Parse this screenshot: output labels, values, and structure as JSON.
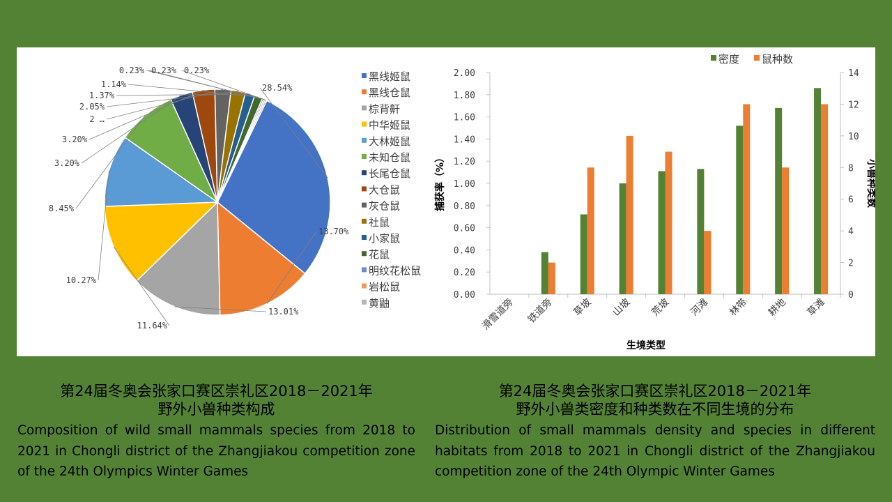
{
  "chart_data": [
    {
      "type": "pie",
      "title": "",
      "legend_position": "right",
      "slices": [
        {
          "label": "黑线姬鼠",
          "value": 28.54,
          "value_label": "28.54%",
          "color": "#4472C4"
        },
        {
          "label": "黑线仓鼠",
          "value": 13.7,
          "value_label": "13.70%",
          "color": "#ED7D31"
        },
        {
          "label": "棕背鼾",
          "value": 13.01,
          "value_label": "13.01%",
          "color": "#A5A5A5"
        },
        {
          "label": "中华姬鼠",
          "value": 11.64,
          "value_label": "11.64%",
          "color": "#FFC000"
        },
        {
          "label": "大林姬鼠",
          "value": 10.27,
          "value_label": "10.27%",
          "color": "#5B9BD5"
        },
        {
          "label": "未知仓鼠",
          "value": 8.45,
          "value_label": "8.45%",
          "color": "#70AD47"
        },
        {
          "label": "长尾仓鼠",
          "value": 3.2,
          "value_label": "3.20%",
          "color": "#264478"
        },
        {
          "label": "大仓鼠",
          "value": 3.2,
          "value_label": "3.20%",
          "color": "#9E480E"
        },
        {
          "label": "灰仓鼠",
          "value": 2.28,
          "value_label": "2 …",
          "color": "#636363"
        },
        {
          "label": "社鼠",
          "value": 2.05,
          "value_label": "2.05%",
          "color": "#997300"
        },
        {
          "label": "小家鼠",
          "value": 1.37,
          "value_label": "1.37%",
          "color": "#255E91"
        },
        {
          "label": "花鼠",
          "value": 1.14,
          "value_label": "1.14%",
          "color": "#43682B"
        },
        {
          "label": "明纹花松鼠",
          "value": 0.23,
          "value_label": "0.23%",
          "color": "#698ED0"
        },
        {
          "label": "岩松鼠",
          "value": 0.23,
          "value_label": "0.23%",
          "color": "#F1975A"
        },
        {
          "label": "黄鼬",
          "value": 0.23,
          "value_label": "0.23%",
          "color": "#B7B7B7"
        }
      ]
    },
    {
      "type": "bar",
      "title": "",
      "xlabel": "生境类型",
      "ylabel": "捕获率（%）",
      "y2label": "小兽种类数",
      "categories": [
        "滑雪道旁",
        "铁道旁",
        "草坡",
        "山坡",
        "荒坡",
        "河滩",
        "林带",
        "耕地",
        "草滩"
      ],
      "ylim": [
        0,
        2.0
      ],
      "yticks": [
        "0.00",
        "0.20",
        "0.40",
        "0.60",
        "0.80",
        "1.00",
        "1.20",
        "1.40",
        "1.60",
        "1.80",
        "2.00"
      ],
      "y2lim": [
        0,
        14
      ],
      "y2ticks": [
        "0",
        "2",
        "4",
        "6",
        "8",
        "10",
        "12",
        "14"
      ],
      "legend_position": "top-right",
      "series": [
        {
          "name": "密度",
          "axis": "left",
          "color": "#548235",
          "values": [
            0,
            0.38,
            0.72,
            1.0,
            1.11,
            1.13,
            1.52,
            1.68,
            1.86
          ]
        },
        {
          "name": "鼠种数",
          "axis": "right",
          "color": "#ED7D31",
          "values": [
            0,
            2,
            8,
            10,
            9,
            4,
            12,
            8,
            12
          ]
        }
      ]
    }
  ],
  "captions": {
    "left_cn_1": "第24届冬奥会张家口赛区崇礼区2018－2021年",
    "left_cn_2": "野外小兽种类构成",
    "left_en": "Composition of wild small mammals species from 2018 to 2021 in Chongli district of the Zhangjiakou competition zone of the 24th Olympics Winter Games",
    "right_cn_1": "第24届冬奥会张家口赛区崇礼区2018－2021年",
    "right_cn_2": "野外小兽类密度和种类数在不同生境的分布",
    "right_en": "Distribution of small mammals density and species in different habitats from 2018 to 2021 in Chongli district of the Zhangjiakou competition zone of the 24th Olympic Winter Games"
  }
}
